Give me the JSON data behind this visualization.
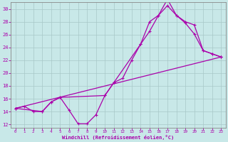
{
  "xlabel": "Windchill (Refroidissement éolien,°C)",
  "xlim": [
    -0.5,
    23.5
  ],
  "ylim": [
    11.5,
    31
  ],
  "xticks": [
    0,
    1,
    2,
    3,
    4,
    5,
    6,
    7,
    8,
    9,
    10,
    11,
    12,
    13,
    14,
    15,
    16,
    17,
    18,
    19,
    20,
    21,
    22,
    23
  ],
  "yticks": [
    12,
    14,
    16,
    18,
    20,
    22,
    24,
    26,
    28,
    30
  ],
  "background_color": "#c8e8e8",
  "grid_color": "#a8c8c8",
  "line_color": "#aa00aa",
  "line1_x": [
    0,
    1,
    2,
    3,
    4,
    5,
    6,
    7,
    8,
    9,
    10,
    11,
    12,
    13,
    14,
    15,
    16,
    17,
    18,
    19,
    20,
    21,
    22,
    23
  ],
  "line1_y": [
    14.5,
    14.8,
    14.0,
    14.0,
    15.5,
    16.2,
    14.2,
    12.1,
    12.1,
    13.5,
    16.5,
    18.5,
    19.2,
    22.0,
    24.5,
    28.0,
    29.0,
    31.5,
    29.0,
    28.0,
    27.5,
    23.5,
    23.0,
    22.5
  ],
  "line2_x": [
    0,
    3,
    4,
    5,
    10,
    11,
    14,
    15,
    16,
    17,
    18,
    19,
    20,
    21,
    22,
    23
  ],
  "line2_y": [
    14.5,
    14.0,
    15.5,
    16.2,
    16.5,
    18.5,
    24.5,
    26.5,
    29.0,
    30.5,
    29.0,
    27.8,
    26.1,
    23.5,
    23.0,
    22.5
  ],
  "line3_x": [
    0,
    23
  ],
  "line3_y": [
    14.5,
    22.5
  ]
}
